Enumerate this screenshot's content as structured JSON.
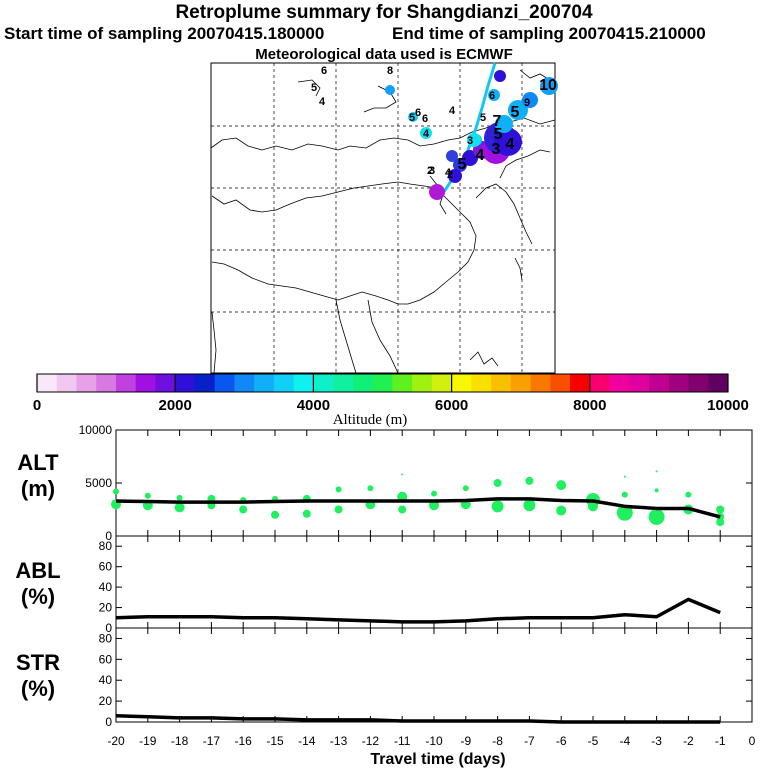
{
  "header": {
    "title": "Retroplume summary for Shangdianzi_200704",
    "start": "Start time of sampling 20070415.180000",
    "end": "End time of sampling 20070415.210000",
    "met": "Meteorological data used is ECMWF"
  },
  "colorbar": {
    "label": "Altitude (m)",
    "ticks": [
      "0",
      "2000",
      "4000",
      "6000",
      "8000",
      "10000"
    ],
    "colors": [
      "#f8e8f8",
      "#f0c8f0",
      "#e8a0e8",
      "#d878e0",
      "#c040e0",
      "#a010e0",
      "#7010e0",
      "#3010d8",
      "#0820c8",
      "#0858f0",
      "#1088f8",
      "#10b0f8",
      "#10d0f8",
      "#10f0f0",
      "#10f0c8",
      "#10f0a0",
      "#10f078",
      "#20f050",
      "#60f020",
      "#a0f010",
      "#d0f010",
      "#f8f800",
      "#f8e000",
      "#f8c000",
      "#f8a000",
      "#f87800",
      "#f85000",
      "#f80000",
      "#f80070",
      "#f000a0",
      "#e000a0",
      "#c00090",
      "#a00080",
      "#800070",
      "#600060"
    ]
  },
  "map_labels": {
    "numbers": [
      {
        "t": "6",
        "c": "#10d0f8"
      },
      {
        "t": "8",
        "c": "#10a0f8"
      },
      {
        "t": "5",
        "c": "#ffffff"
      },
      {
        "t": "4",
        "c": "#ffffff"
      },
      {
        "t": "6",
        "c": "#10d0f8"
      },
      {
        "t": "4",
        "c": "#ffffff"
      },
      {
        "t": "5",
        "c": "#10d0f8"
      },
      {
        "t": "6",
        "c": "#10d0f8"
      },
      {
        "t": "3",
        "c": "#10d0f8"
      },
      {
        "t": "4",
        "c": "#10e0f0"
      },
      {
        "t": "3",
        "c": "#10d0f8"
      },
      {
        "t": "4",
        "c": "#10d0f8"
      },
      {
        "t": "2",
        "c": "#10d0f8"
      },
      {
        "t": "2",
        "c": "#10a0f8"
      },
      {
        "t": "5",
        "c": "#2040e0"
      },
      {
        "t": "4",
        "c": "#b020d8"
      },
      {
        "t": "6",
        "c": "#10b0f8"
      },
      {
        "t": "5",
        "c": "#10b0f8"
      },
      {
        "t": "7",
        "c": "#10b0f8"
      },
      {
        "t": "5",
        "c": "#10b0f8"
      },
      {
        "t": "9",
        "c": "#1088f8"
      },
      {
        "t": "10",
        "c": "#10a0f8"
      },
      {
        "t": "5",
        "c": "#3010d8"
      },
      {
        "t": "4",
        "c": "#3010d8"
      },
      {
        "t": "3",
        "c": "#a010e0"
      }
    ]
  },
  "chart_data": {
    "type": "line",
    "x_label": "Travel time (days)",
    "x_ticks": [
      "-20",
      "-19",
      "-18",
      "-17",
      "-16",
      "-15",
      "-14",
      "-13",
      "-12",
      "-11",
      "-10",
      "-9",
      "-8",
      "-7",
      "-6",
      "-5",
      "-4",
      "-3",
      "-2",
      "-1",
      "0"
    ],
    "xlim": [
      -20,
      0
    ],
    "panels": [
      {
        "name": "ALT",
        "label": "ALT",
        "unit": "(m)",
        "ylim": [
          0,
          10000
        ],
        "y_ticks": [
          "10000",
          "5000",
          "0"
        ],
        "x": [
          -20,
          -19,
          -18,
          -17,
          -16,
          -15,
          -14,
          -13,
          -12,
          -11,
          -10,
          -9,
          -8,
          -7,
          -6,
          -5,
          -4,
          -3,
          -2,
          -1
        ],
        "values": [
          3300,
          3250,
          3200,
          3200,
          3200,
          3250,
          3300,
          3300,
          3300,
          3300,
          3300,
          3350,
          3500,
          3500,
          3350,
          3300,
          2800,
          2600,
          2600,
          1800
        ],
        "scatter": [
          {
            "x": -20,
            "y": 4200,
            "r": 3
          },
          {
            "x": -20,
            "y": 3000,
            "r": 5
          },
          {
            "x": -19,
            "y": 3800,
            "r": 3
          },
          {
            "x": -19,
            "y": 2900,
            "r": 5
          },
          {
            "x": -18,
            "y": 3600,
            "r": 3
          },
          {
            "x": -18,
            "y": 2700,
            "r": 5
          },
          {
            "x": -17,
            "y": 3500,
            "r": 4
          },
          {
            "x": -17,
            "y": 2900,
            "r": 4
          },
          {
            "x": -16,
            "y": 3400,
            "r": 3
          },
          {
            "x": -16,
            "y": 2500,
            "r": 4
          },
          {
            "x": -15,
            "y": 3500,
            "r": 3
          },
          {
            "x": -15,
            "y": 2000,
            "r": 4
          },
          {
            "x": -14,
            "y": 3500,
            "r": 4
          },
          {
            "x": -14,
            "y": 2100,
            "r": 4
          },
          {
            "x": -13,
            "y": 4400,
            "r": 3
          },
          {
            "x": -13,
            "y": 2500,
            "r": 4
          },
          {
            "x": -12,
            "y": 4500,
            "r": 3
          },
          {
            "x": -12,
            "y": 3000,
            "r": 5
          },
          {
            "x": -11,
            "y": 5800,
            "r": 1
          },
          {
            "x": -11,
            "y": 3700,
            "r": 5
          },
          {
            "x": -11,
            "y": 2500,
            "r": 4
          },
          {
            "x": -10,
            "y": 4000,
            "r": 3
          },
          {
            "x": -10,
            "y": 2900,
            "r": 5
          },
          {
            "x": -9,
            "y": 4500,
            "r": 3
          },
          {
            "x": -9,
            "y": 3000,
            "r": 5
          },
          {
            "x": -8,
            "y": 5000,
            "r": 4
          },
          {
            "x": -8,
            "y": 2800,
            "r": 6
          },
          {
            "x": -7,
            "y": 5200,
            "r": 4
          },
          {
            "x": -7,
            "y": 2900,
            "r": 6
          },
          {
            "x": -6,
            "y": 4800,
            "r": 5
          },
          {
            "x": -6,
            "y": 2400,
            "r": 5
          },
          {
            "x": -5,
            "y": 3400,
            "r": 7
          },
          {
            "x": -5,
            "y": 2800,
            "r": 5
          },
          {
            "x": -4,
            "y": 5600,
            "r": 1
          },
          {
            "x": -4,
            "y": 3900,
            "r": 3
          },
          {
            "x": -4,
            "y": 2200,
            "r": 8
          },
          {
            "x": -3,
            "y": 6100,
            "r": 1
          },
          {
            "x": -3,
            "y": 4300,
            "r": 2
          },
          {
            "x": -3,
            "y": 1800,
            "r": 8
          },
          {
            "x": -2,
            "y": 3900,
            "r": 3
          },
          {
            "x": -2,
            "y": 2500,
            "r": 5
          },
          {
            "x": -1,
            "y": 2500,
            "r": 4
          },
          {
            "x": -1,
            "y": 1800,
            "r": 4
          },
          {
            "x": -1,
            "y": 1300,
            "r": 4
          }
        ]
      },
      {
        "name": "ABL",
        "label": "ABL",
        "unit": "(%)",
        "ylim": [
          0,
          90
        ],
        "y_ticks": [
          "80",
          "60",
          "40",
          "20",
          "0"
        ],
        "x": [
          -20,
          -19,
          -18,
          -17,
          -16,
          -15,
          -14,
          -13,
          -12,
          -11,
          -10,
          -9,
          -8,
          -7,
          -6,
          -5,
          -4,
          -3,
          -2,
          -1
        ],
        "values": [
          10,
          11,
          11,
          11,
          10,
          10,
          9,
          8,
          7,
          6,
          6,
          7,
          9,
          10,
          10,
          10,
          13,
          11,
          28,
          15
        ]
      },
      {
        "name": "STR",
        "label": "STR",
        "unit": "(%)",
        "ylim": [
          0,
          90
        ],
        "y_ticks": [
          "80",
          "60",
          "40",
          "20",
          "0"
        ],
        "x": [
          -20,
          -19,
          -18,
          -17,
          -16,
          -15,
          -14,
          -13,
          -12,
          -11,
          -10,
          -9,
          -8,
          -7,
          -6,
          -5,
          -4,
          -3,
          -2,
          -1
        ],
        "values": [
          6,
          5,
          4,
          4,
          3,
          3,
          2,
          2,
          2,
          1,
          1,
          1,
          1,
          1,
          0,
          0,
          0,
          0,
          0,
          0
        ]
      }
    ]
  }
}
